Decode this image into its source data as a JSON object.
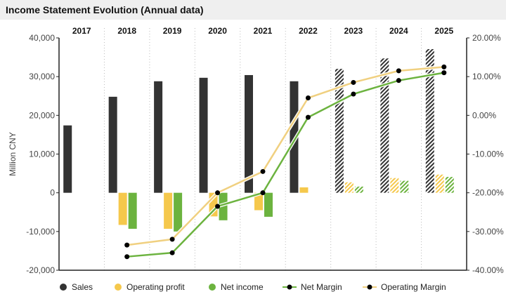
{
  "header": {
    "title": "Income Statement Evolution (Annual data)"
  },
  "chart_data": {
    "type": "bar",
    "title": "Income Statement Evolution (Annual data)",
    "categories": [
      "2017",
      "2018",
      "2019",
      "2020",
      "2021",
      "2022",
      "2023",
      "2024",
      "2025"
    ],
    "estimated_from": "2023",
    "ylabel": "Million CNY",
    "ylim": [
      -20000,
      40000
    ],
    "yticks": [
      "-20,000",
      "-10,000",
      "0",
      "10,000",
      "20,000",
      "30,000",
      "40,000"
    ],
    "y2lim": [
      -40,
      20
    ],
    "y2ticks": [
      "-40.00%",
      "-30.00%",
      "-20.00%",
      "-10.00%",
      "0.00%",
      "10.00%",
      "20.00%"
    ],
    "legend_position": "bottom",
    "grid": "vertical dotted",
    "colors": {
      "sales": "#333333",
      "operating_profit": "#f5c84c",
      "net_income": "#6cb33f",
      "margin_line_net": "#6cb33f",
      "margin_line_op": "#f0d080"
    },
    "series": [
      {
        "name": "Sales",
        "kind": "bar",
        "axis": "left",
        "values": [
          17400,
          24800,
          28800,
          29700,
          30400,
          28800,
          32000,
          34700,
          37100
        ]
      },
      {
        "name": "Operating profit",
        "kind": "bar",
        "axis": "left",
        "values": [
          null,
          -8300,
          -9300,
          -6100,
          -4500,
          1400,
          2700,
          3800,
          4700
        ]
      },
      {
        "name": "Net income",
        "kind": "bar",
        "axis": "left",
        "values": [
          null,
          -9300,
          -10000,
          -7100,
          -6200,
          null,
          1600,
          3100,
          4100
        ]
      },
      {
        "name": "Net Margin",
        "kind": "line",
        "axis": "right",
        "values": [
          null,
          -36.5,
          -35.5,
          -23.5,
          -20,
          -0.5,
          5.5,
          9,
          11
        ]
      },
      {
        "name": "Operating Margin",
        "kind": "line",
        "axis": "right",
        "values": [
          null,
          -33.5,
          -32,
          -20,
          -14.5,
          4.5,
          8.5,
          11.5,
          12.5
        ]
      }
    ]
  }
}
